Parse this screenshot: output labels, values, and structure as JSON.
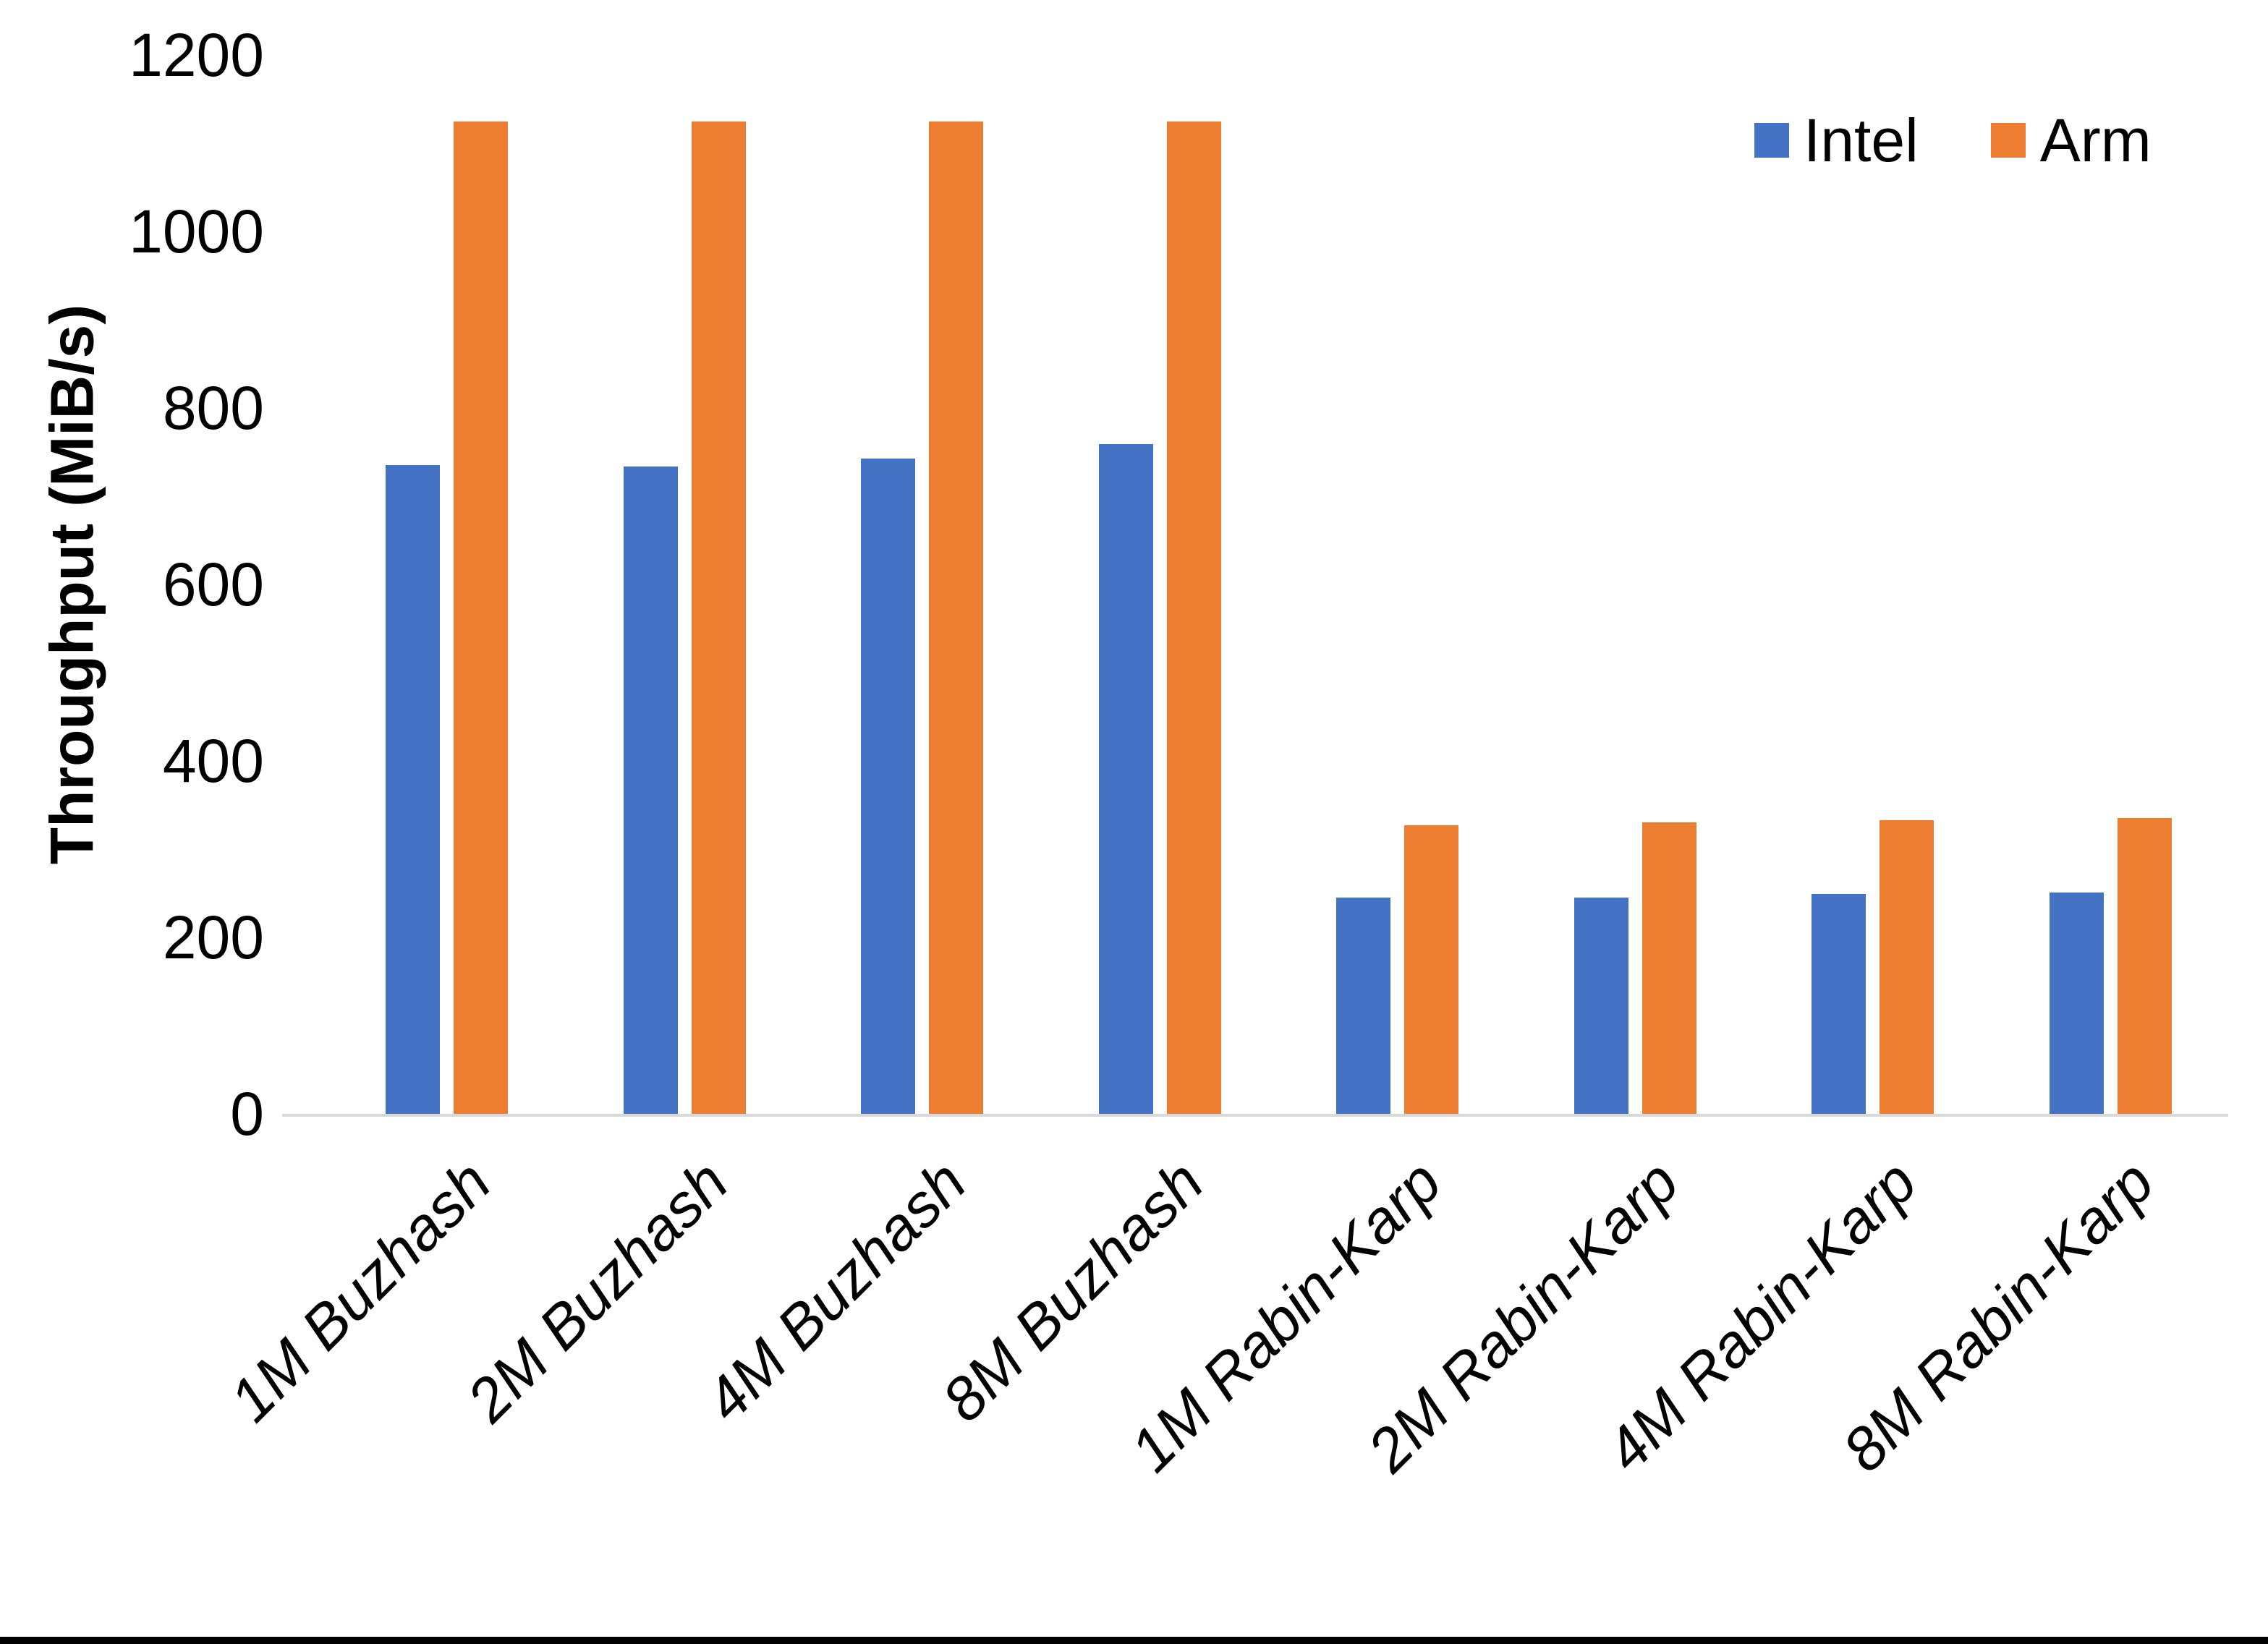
{
  "chart_data": {
    "type": "bar",
    "title": "",
    "xlabel": "",
    "ylabel": "Throughput (MiB/s)",
    "ylim": [
      0,
      1200
    ],
    "yticks": [
      0,
      200,
      400,
      600,
      800,
      1000,
      1200
    ],
    "grid": false,
    "legend_position": "top-right",
    "categories": [
      "1M Buzhash",
      "2M Buzhash",
      "4M Buzhash",
      "8M Buzhash",
      "1M Rabin-Karp",
      "2M Rabin-Karp",
      "4M Rabin-Karp",
      "8M Rabin-Karp"
    ],
    "series": [
      {
        "name": "Intel",
        "color": "#4472C4",
        "values": [
          735,
          734,
          743,
          759,
          245,
          245,
          249,
          251
        ]
      },
      {
        "name": "Arm",
        "color": "#ED7D31",
        "values": [
          1125,
          1125,
          1125,
          1125,
          327,
          330,
          333,
          335
        ]
      }
    ]
  },
  "colors": {
    "axis_line": "#d9d9d9",
    "text": "#000000",
    "bottom_border": "#000000"
  }
}
